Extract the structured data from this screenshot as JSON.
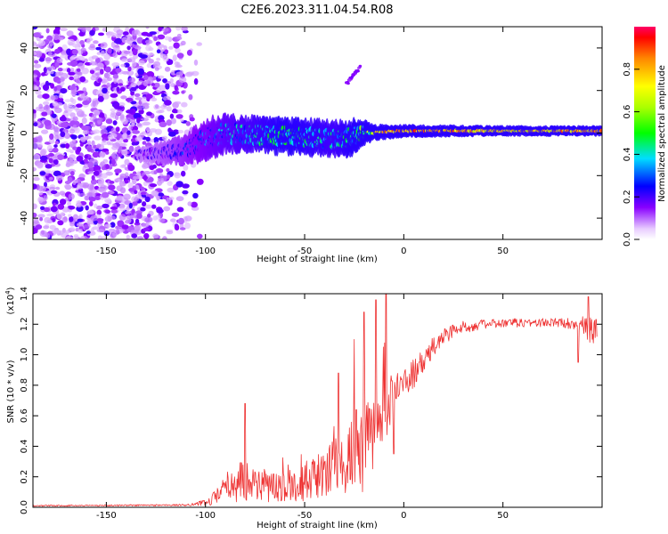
{
  "title": "C2E6.2023.311.04.54.R08",
  "colors": {
    "background": "#ffffff",
    "snr_line": "#ee3333",
    "axis": "#000000"
  },
  "chart_data": [
    {
      "type": "heatmap",
      "name": "spectrogram",
      "xlabel": "Height of straight line (km)",
      "ylabel": "Frequency (Hz)",
      "xlim": [
        -187,
        100
      ],
      "ylim": [
        -50,
        50
      ],
      "x_ticks": [
        -150,
        -100,
        -50,
        0,
        50
      ],
      "y_ticks": [
        -40,
        -20,
        0,
        20,
        40
      ],
      "colorbar": {
        "label": "Normalized spectral amplitude",
        "range": [
          0.0,
          1.0
        ],
        "ticks": [
          "0.0",
          "0.2",
          "0.4",
          "0.6",
          "0.8"
        ],
        "tick_values": [
          0.0,
          0.2,
          0.4,
          0.6,
          0.8
        ],
        "stops": [
          {
            "v": 0.0,
            "c": "#ffffff"
          },
          {
            "v": 0.05,
            "c": "#e8ccff"
          },
          {
            "v": 0.15,
            "c": "#8800ff"
          },
          {
            "v": 0.25,
            "c": "#0000ff"
          },
          {
            "v": 0.38,
            "c": "#00ddff"
          },
          {
            "v": 0.5,
            "c": "#00ff00"
          },
          {
            "v": 0.62,
            "c": "#aaff00"
          },
          {
            "v": 0.72,
            "c": "#ffff00"
          },
          {
            "v": 0.85,
            "c": "#ff8800"
          },
          {
            "v": 0.95,
            "c": "#ff0000"
          },
          {
            "v": 1.0,
            "c": "#ff0066"
          }
        ]
      },
      "signal_band": {
        "description": "Energy concentrated near 0 Hz, spreading above -30 km; broad noise below -105 km",
        "center_hz": [
          [
            -130,
            -10
          ],
          [
            -110,
            -8
          ],
          [
            -100,
            -3
          ],
          [
            -90,
            0
          ],
          [
            -70,
            -1
          ],
          [
            -50,
            -2
          ],
          [
            -30,
            -3
          ],
          [
            -20,
            0
          ],
          [
            0,
            1
          ],
          [
            20,
            1
          ],
          [
            50,
            1
          ],
          [
            98,
            1
          ]
        ],
        "halfwidth_hz": [
          [
            -130,
            3
          ],
          [
            -110,
            6
          ],
          [
            -100,
            8
          ],
          [
            -80,
            7
          ],
          [
            -60,
            7
          ],
          [
            -40,
            7
          ],
          [
            -25,
            7
          ],
          [
            -15,
            3
          ],
          [
            0,
            2.5
          ],
          [
            50,
            2
          ],
          [
            98,
            2
          ]
        ],
        "peak_amplitude": [
          [
            -130,
            0.2
          ],
          [
            -110,
            0.3
          ],
          [
            -90,
            0.4
          ],
          [
            -60,
            0.5
          ],
          [
            -35,
            0.45
          ],
          [
            -25,
            0.5
          ],
          [
            -10,
            0.85
          ],
          [
            0,
            0.95
          ],
          [
            20,
            0.9
          ],
          [
            50,
            0.8
          ],
          [
            98,
            0.9
          ]
        ],
        "side_streak": {
          "x": [
            -29,
            -22
          ],
          "y": [
            23,
            31
          ],
          "amplitude": 0.12
        }
      }
    },
    {
      "type": "line",
      "name": "snr",
      "xlabel": "Height of straight line (km)",
      "ylabel": "SNR (10 * v/v)",
      "y_scale_label": "(x10",
      "y_scale_exponent": "4",
      "xlim": [
        -187,
        100
      ],
      "ylim": [
        0.0,
        1.4
      ],
      "x_ticks": [
        -150,
        -100,
        -50,
        0,
        50
      ],
      "y_ticks": [
        "0.0",
        "0.2",
        "0.4",
        "0.6",
        "0.8",
        "1.0",
        "1.2",
        "1.4"
      ],
      "y_tick_values": [
        0.0,
        0.2,
        0.4,
        0.6,
        0.8,
        1.0,
        1.2,
        1.4
      ],
      "envelope": {
        "x": [
          -187,
          -110,
          -100,
          -93,
          -88,
          -80,
          -70,
          -60,
          -50,
          -40,
          -30,
          -25,
          -20,
          -15,
          -10,
          -5,
          0,
          5,
          10,
          15,
          20,
          25,
          30,
          40,
          60,
          80,
          90,
          94,
          98
        ],
        "mean": [
          0.01,
          0.015,
          0.03,
          0.08,
          0.15,
          0.18,
          0.14,
          0.13,
          0.17,
          0.22,
          0.3,
          0.35,
          0.4,
          0.45,
          0.65,
          0.75,
          0.8,
          0.88,
          0.95,
          1.05,
          1.12,
          1.16,
          1.18,
          1.2,
          1.21,
          1.21,
          1.2,
          1.15,
          1.18
        ],
        "noise": [
          0.004,
          0.006,
          0.02,
          0.06,
          0.12,
          0.14,
          0.11,
          0.09,
          0.13,
          0.16,
          0.22,
          0.28,
          0.3,
          0.3,
          0.25,
          0.12,
          0.1,
          0.1,
          0.08,
          0.07,
          0.06,
          0.05,
          0.04,
          0.03,
          0.03,
          0.03,
          0.05,
          0.1,
          0.12
        ]
      },
      "spikes": [
        [
          -80,
          0.68
        ],
        [
          -33,
          0.88
        ],
        [
          -25,
          1.1
        ],
        [
          -20,
          1.28
        ],
        [
          -14,
          1.36
        ],
        [
          -9,
          1.4
        ],
        [
          -5,
          0.35
        ],
        [
          93,
          1.38
        ],
        [
          88,
          0.95
        ]
      ]
    }
  ]
}
